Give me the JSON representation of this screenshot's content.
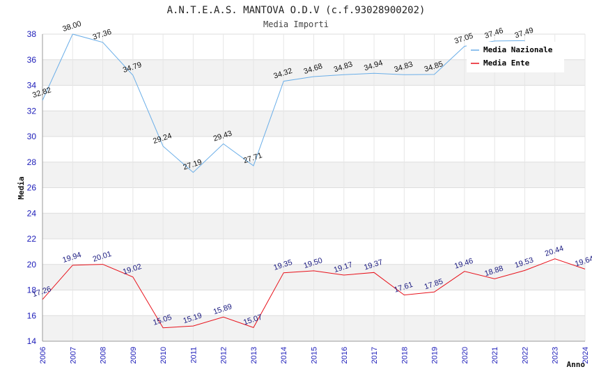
{
  "chart_data": {
    "type": "line",
    "title": "A.N.T.E.A.S. MANTOVA O.D.V (c.f.93028900202)",
    "subtitle": "Media Importi",
    "xlabel": "Anno",
    "ylabel": "Media",
    "ylim": [
      14,
      38
    ],
    "yticks": [
      "14",
      "16",
      "18",
      "20",
      "22",
      "24",
      "26",
      "28",
      "30",
      "32",
      "34",
      "36",
      "38"
    ],
    "categories": [
      "2006",
      "2007",
      "2008",
      "2009",
      "2010",
      "2011",
      "2012",
      "2013",
      "2014",
      "2015",
      "2016",
      "2017",
      "2018",
      "2019",
      "2020",
      "2021",
      "2022",
      "2023",
      "2024"
    ],
    "series": [
      {
        "name": "Media Nazionale",
        "color": "#6aaee8",
        "values": [
          32.82,
          38.0,
          37.36,
          34.79,
          29.24,
          27.19,
          29.43,
          27.71,
          34.32,
          34.68,
          34.83,
          34.94,
          34.83,
          34.85,
          37.05,
          37.46,
          37.49,
          null,
          null
        ],
        "labels": [
          "32.82",
          "38.00",
          "37.36",
          "34.79",
          "29.24",
          "27.19",
          "29.43",
          "27.71",
          "34.32",
          "34.68",
          "34.83",
          "34.94",
          "34.83",
          "34.85",
          "37.05",
          "37.46",
          "37.49",
          "",
          ""
        ]
      },
      {
        "name": "Media Ente",
        "color": "#e8111a",
        "values": [
          17.26,
          19.94,
          20.01,
          19.02,
          15.05,
          15.19,
          15.89,
          15.07,
          19.35,
          19.5,
          19.17,
          19.37,
          17.61,
          17.85,
          19.46,
          18.88,
          19.53,
          20.44,
          19.64
        ],
        "labels": [
          "17.26",
          "19.94",
          "20.01",
          "19.02",
          "15.05",
          "15.19",
          "15.89",
          "15.07",
          "19.35",
          "19.50",
          "19.17",
          "19.37",
          "17.61",
          "17.85",
          "19.46",
          "18.88",
          "19.53",
          "20.44",
          "19.64"
        ]
      }
    ],
    "legend": "top-right",
    "grid": true
  }
}
